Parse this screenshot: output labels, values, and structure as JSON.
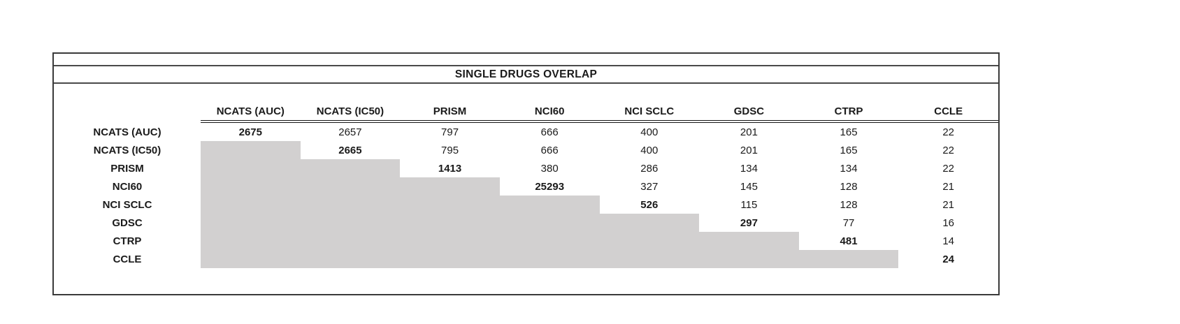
{
  "chart_data": {
    "type": "table",
    "title": "SINGLE DRUGS OVERLAP",
    "column_headers": [
      "NCATS (AUC)",
      "NCATS (IC50)",
      "PRISM",
      "NCI60",
      "NCI SCLC",
      "GDSC",
      "CTRP",
      "CCLE"
    ],
    "row_headers": [
      "NCATS (AUC)",
      "NCATS (IC50)",
      "PRISM",
      "NCI60",
      "NCI SCLC",
      "GDSC",
      "CTRP",
      "CCLE"
    ],
    "matrix": [
      [
        "2675",
        "2657",
        "797",
        "666",
        "400",
        "201",
        "165",
        "22"
      ],
      [
        null,
        "2665",
        "795",
        "666",
        "400",
        "201",
        "165",
        "22"
      ],
      [
        null,
        null,
        "1413",
        "380",
        "286",
        "134",
        "134",
        "22"
      ],
      [
        null,
        null,
        null,
        "25293",
        "327",
        "145",
        "128",
        "21"
      ],
      [
        null,
        null,
        null,
        null,
        "526",
        "115",
        "128",
        "21"
      ],
      [
        null,
        null,
        null,
        null,
        null,
        "297",
        "77",
        "16"
      ],
      [
        null,
        null,
        null,
        null,
        null,
        null,
        "481",
        "14"
      ],
      [
        null,
        null,
        null,
        null,
        null,
        null,
        null,
        "24"
      ]
    ],
    "diagonal_values_bold": true,
    "lower_triangle_shaded": true,
    "legend_position": "none",
    "grid": "off"
  },
  "colors": {
    "lower_triangle_fill": "#d2d0d0",
    "outer_border": "#3a3a3a",
    "inner_line": "#4a4a4a",
    "header_underline": "#161616",
    "text": "#1a1a1a",
    "background": "#ffffff"
  }
}
